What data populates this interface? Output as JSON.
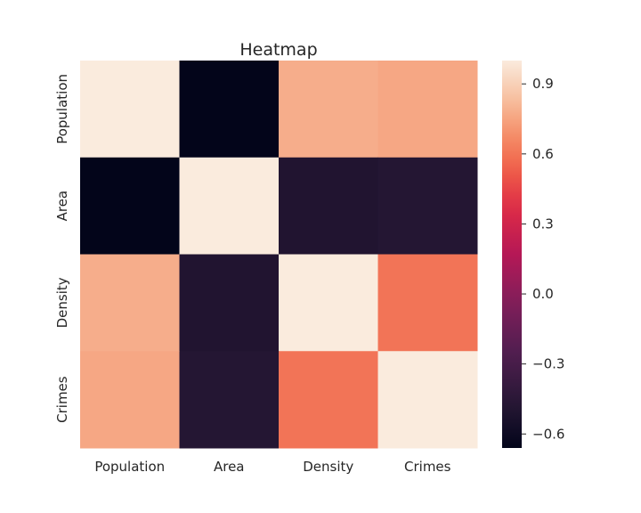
{
  "chart_data": {
    "type": "heatmap",
    "title": "Heatmap",
    "xlabel": "",
    "ylabel": "",
    "x_categories": [
      "Population",
      "Area",
      "Density",
      "Crimes"
    ],
    "y_categories": [
      "Population",
      "Area",
      "Density",
      "Crimes"
    ],
    "values": [
      [
        1.0,
        -0.66,
        0.78,
        0.76
      ],
      [
        -0.66,
        1.0,
        -0.5,
        -0.48
      ],
      [
        0.78,
        -0.5,
        1.0,
        0.6
      ],
      [
        0.76,
        -0.48,
        0.6,
        1.0
      ]
    ],
    "colorbar": {
      "range": [
        -0.66,
        1.0
      ],
      "ticks": [
        0.9,
        0.6,
        0.3,
        0.0,
        -0.3,
        -0.6
      ],
      "tick_labels": [
        "0.9",
        "0.6",
        "0.3",
        "0.0",
        "−0.3",
        "−0.6"
      ],
      "colormap": "rocket"
    }
  }
}
